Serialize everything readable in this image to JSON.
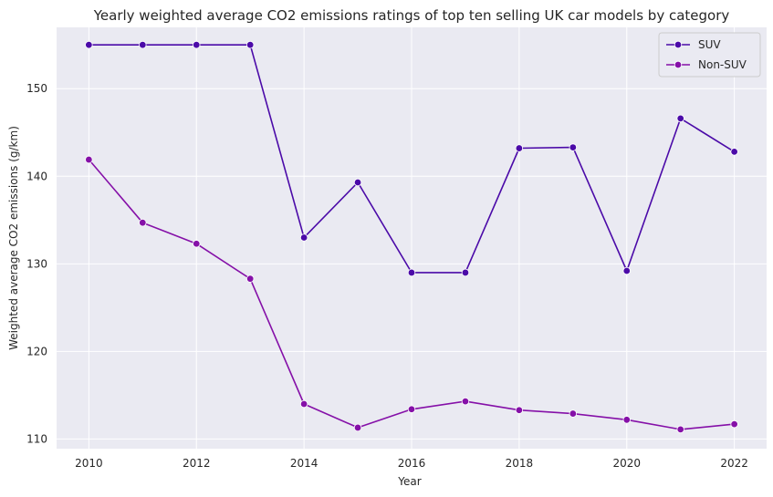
{
  "chart_data": {
    "type": "line",
    "title": "Yearly weighted average CO2 emissions ratings of top ten selling UK car models by category",
    "xlabel": "Year",
    "ylabel": "Weighted average CO2 emissions (g/km)",
    "xlim": [
      2009.4,
      2022.6
    ],
    "ylim": [
      108.9,
      157.0
    ],
    "x_ticks": [
      2010,
      2012,
      2014,
      2016,
      2018,
      2020,
      2022
    ],
    "y_ticks": [
      110,
      120,
      130,
      140,
      150
    ],
    "grid": true,
    "legend_position": "top-right",
    "x": [
      2010,
      2011,
      2012,
      2013,
      2014,
      2015,
      2016,
      2017,
      2018,
      2019,
      2020,
      2021,
      2022
    ],
    "series": [
      {
        "name": "SUV",
        "color": "#4b0aa8",
        "values": [
          155.0,
          155.0,
          155.0,
          155.0,
          133.0,
          139.3,
          129.0,
          129.0,
          143.2,
          143.3,
          129.2,
          146.6,
          142.8
        ]
      },
      {
        "name": "Non-SUV",
        "color": "#8510a8",
        "values": [
          141.9,
          134.7,
          132.3,
          128.3,
          114.0,
          111.3,
          113.4,
          114.3,
          113.3,
          112.9,
          112.2,
          111.1,
          111.7
        ]
      }
    ]
  }
}
